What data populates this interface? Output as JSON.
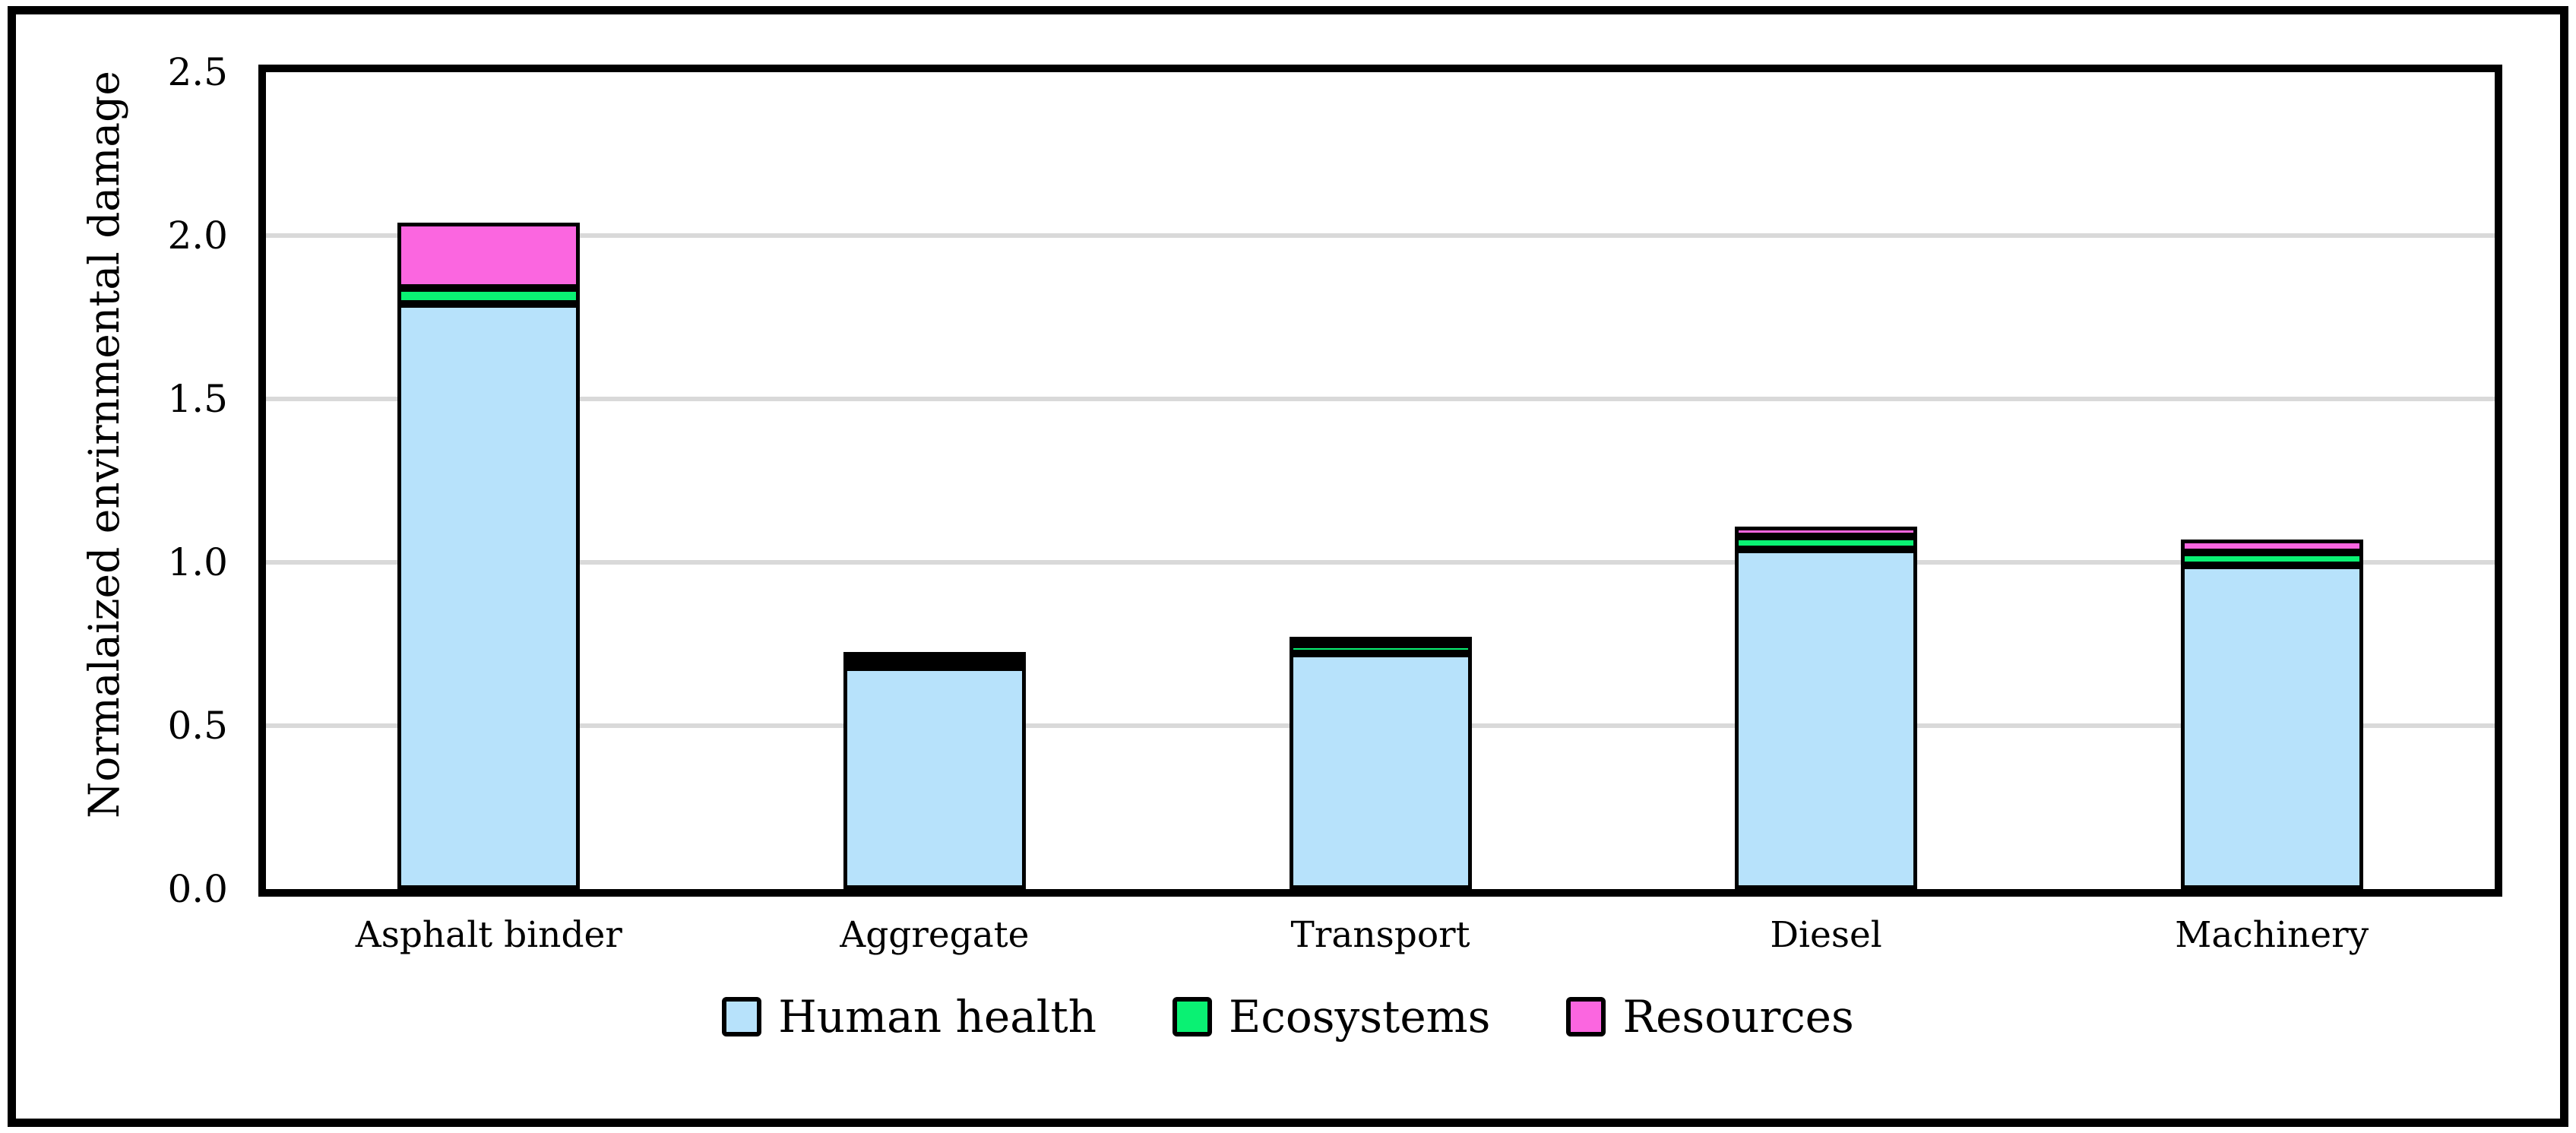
{
  "figure": {
    "background": "#FFFFFF",
    "border_color": "#000000"
  },
  "chart_data": {
    "type": "bar",
    "stacked": true,
    "title": "",
    "categories": [
      "Asphalt binder",
      "Aggregate",
      "Transport",
      "Diesel",
      "Machinery"
    ],
    "series": [
      {
        "name": "Human health",
        "color": "#B7E2FB",
        "values": [
          1.79,
          0.68,
          0.72,
          1.04,
          0.99
        ]
      },
      {
        "name": "Ecosystems",
        "color": "#0AF173",
        "values": [
          0.05,
          0.02,
          0.03,
          0.04,
          0.04
        ]
      },
      {
        "name": "Resources",
        "color": "#FB66E0",
        "values": [
          0.2,
          0.01,
          0.02,
          0.03,
          0.04
        ]
      }
    ],
    "totals": [
      2.04,
      0.71,
      0.77,
      1.11,
      1.07
    ],
    "xlabel": "",
    "ylabel": "Normalaized envirnmental damage",
    "ylim": [
      0,
      2.5
    ],
    "ytick_labels": [
      "0.0",
      "0.5",
      "1.0",
      "1.5",
      "2.0",
      "2.5"
    ],
    "ytick_values": [
      0.0,
      0.5,
      1.0,
      1.5,
      2.0,
      2.5
    ],
    "grid": true,
    "gridline_color": "#D9D9D9",
    "bar_border_color": "#000000",
    "legend_position": "bottom"
  }
}
